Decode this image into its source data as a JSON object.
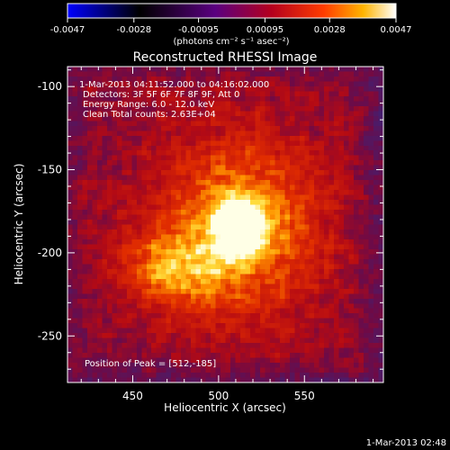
{
  "colorbar": {
    "ticks": [
      "-0.0047",
      "-0.0028",
      "-0.00095",
      "0.00095",
      "0.0028",
      "0.0047"
    ],
    "unit_label": "(photons cm⁻² s⁻¹ asec⁻²)",
    "colormap": [
      "#0000ff",
      "#000000",
      "#5a0080",
      "#b4001e",
      "#ff3c00",
      "#ffb400",
      "#ffffff"
    ]
  },
  "chart_data": {
    "type": "heatmap",
    "title": "Reconstructed RHESSI Image",
    "xlabel": "Heliocentric X (arcsec)",
    "ylabel": "Heliocentric Y (arcsec)",
    "xlim": [
      412,
      596
    ],
    "ylim": [
      -278,
      -88
    ],
    "xticks": [
      450,
      500,
      550
    ],
    "yticks": [
      -100,
      -150,
      -200,
      -250
    ],
    "value_range": [
      -0.0047,
      0.0047
    ],
    "peak": {
      "x": 512,
      "y": -185
    },
    "annotations": [
      "1-Mar-2013 04:11:52.000  to  04:16:02.000",
      "Detectors: 3F 5F 6F 7F 8F 9F, Att 0",
      "Energy Range: 6.0 - 12.0 keV",
      "Clean     Total counts: 2.63E+04",
      "Position of Peak = [512,-185]"
    ]
  },
  "footer": {
    "timestamp": "1-Mar-2013 02:48"
  }
}
